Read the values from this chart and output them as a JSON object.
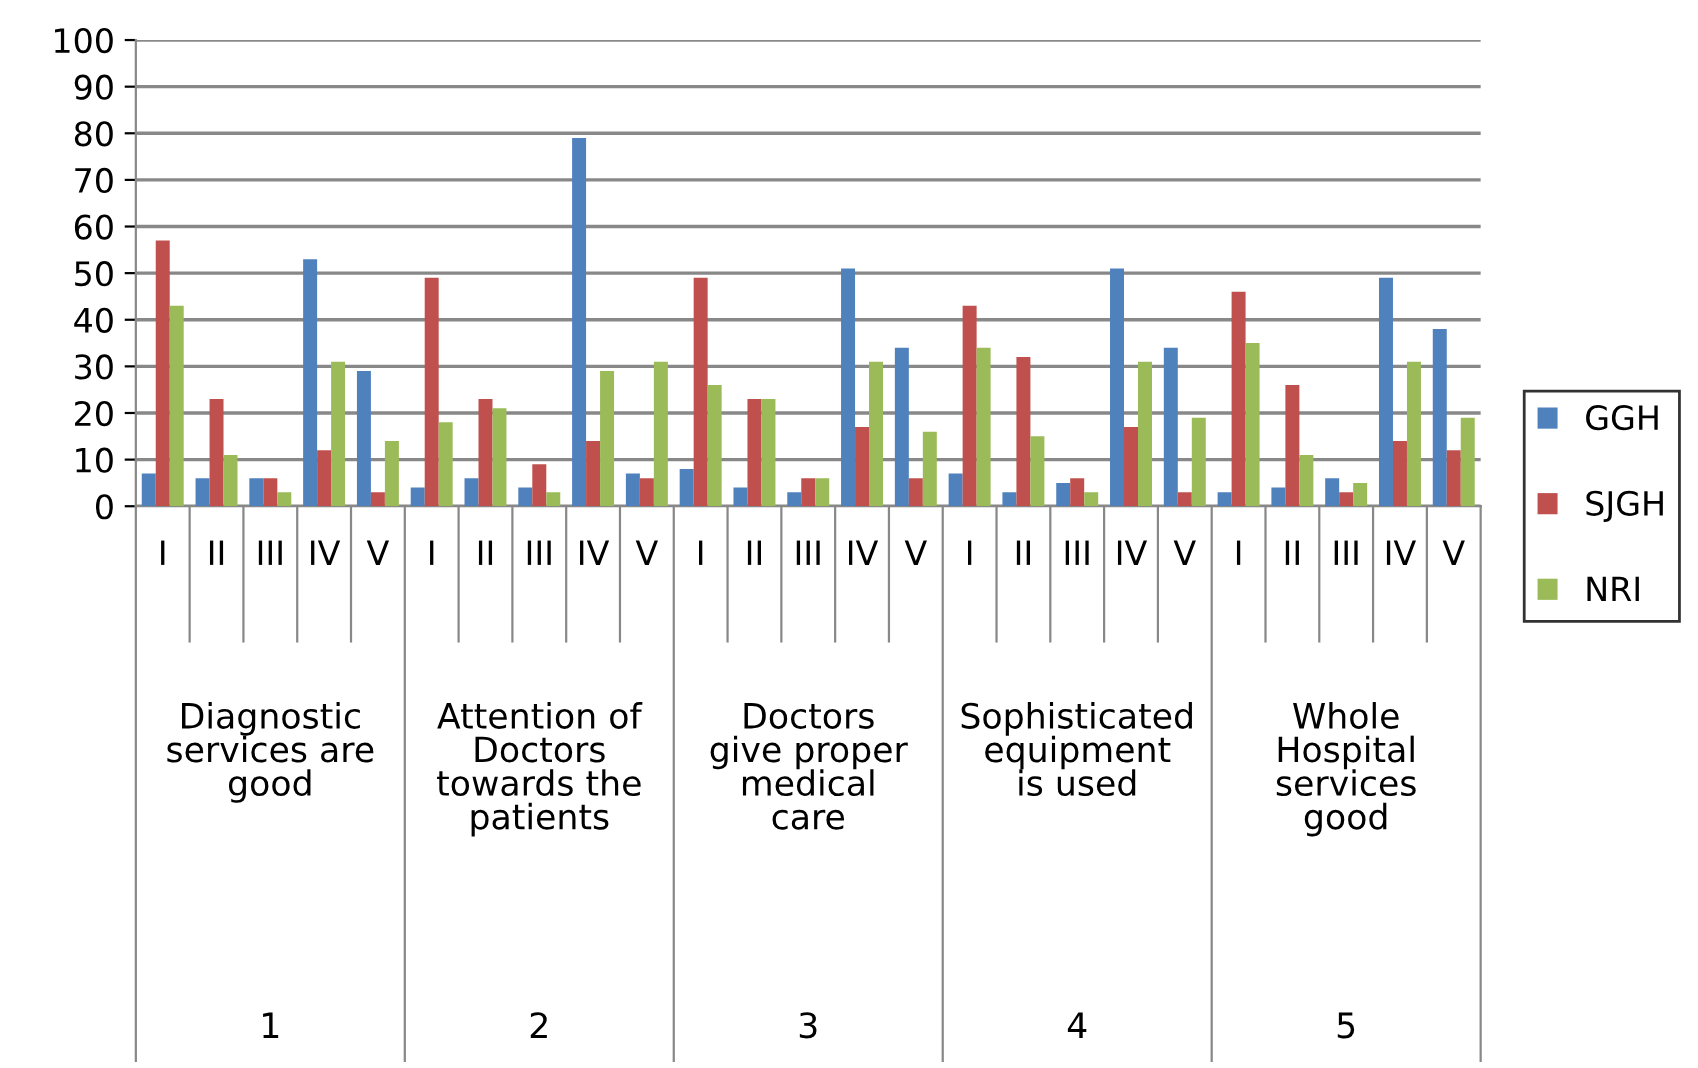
{
  "chart_data": {
    "type": "bar",
    "categories": [
      "I",
      "II",
      "III",
      "IV",
      "V",
      "I",
      "II",
      "III",
      "IV",
      "V",
      "I",
      "II",
      "III",
      "IV",
      "V",
      "I",
      "II",
      "III",
      "IV",
      "V",
      "I",
      "II",
      "III",
      "IV",
      "V"
    ],
    "series": [
      {
        "name": "GGH",
        "color": "#4f81bd",
        "values": [
          7,
          6,
          6,
          53,
          29,
          4,
          6,
          4,
          79,
          7,
          8,
          4,
          3,
          51,
          34,
          7,
          3,
          5,
          51,
          34,
          3,
          4,
          6,
          49,
          38
        ]
      },
      {
        "name": "SJGH",
        "color": "#c0504d",
        "values": [
          57,
          23,
          6,
          12,
          3,
          49,
          23,
          9,
          14,
          6,
          49,
          23,
          6,
          17,
          6,
          43,
          32,
          6,
          17,
          3,
          46,
          26,
          3,
          14,
          12
        ]
      },
      {
        "name": "NRI",
        "color": "#9bbb59",
        "values": [
          43,
          11,
          3,
          31,
          14,
          18,
          21,
          3,
          29,
          31,
          26,
          23,
          6,
          31,
          16,
          34,
          15,
          3,
          31,
          19,
          35,
          11,
          5,
          31,
          19
        ]
      }
    ],
    "annotations": [
      "Diagnostic\nservices are\ngood",
      "Attention of\nDoctors\ntowards the\npatients",
      "Doctors\ngive proper\nmedical\ncare",
      "Sophisticated\nequipment\nis used",
      "Whole\nHospital\nservices\ngood",
      "1",
      "2",
      "3",
      "4",
      "5"
    ],
    "ylim": [
      0,
      100
    ],
    "yticks": [
      0,
      10,
      20,
      30,
      40,
      50,
      60,
      70,
      80,
      90,
      100
    ],
    "grid": "y",
    "legend": "right"
  }
}
